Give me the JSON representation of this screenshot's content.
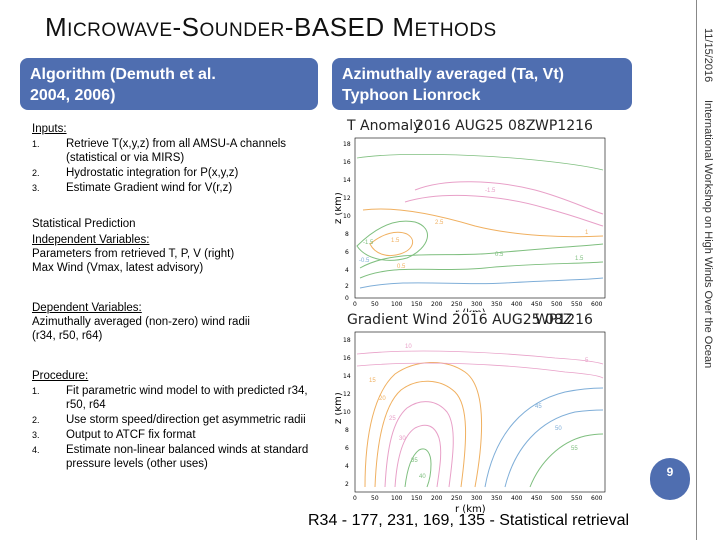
{
  "slide": {
    "title_first": "M",
    "title_rest_1": "ICROWAVE",
    "title_dash_1": "-S",
    "title_rest_2": "OUNDER",
    "title_dash_2": "-BASED M",
    "title_rest_3": "ETHODS",
    "side_date": "11/15/2016",
    "side_workshop": "International Workshop on High Winds Over the Ocean",
    "page_number": "9"
  },
  "left_box": {
    "line1": "Algorithm  (Demuth et al.",
    "line2": "2004, 2006)"
  },
  "right_box": {
    "line1": "Azimuthally averaged (Ta, Vt)",
    "line2": "Typhoon Lionrock"
  },
  "inputs": {
    "heading": "Inputs:",
    "items": [
      {
        "num": "1.",
        "text": "Retrieve T(x,y,z) from all AMSU-A channels (statistical or via MIRS)"
      },
      {
        "num": "2.",
        "text": "Hydrostatic integration for P(x,y,z)"
      },
      {
        "num": "3.",
        "text": "Estimate Gradient wind for V(r,z)"
      }
    ]
  },
  "statistical": {
    "heading": "Statistical Prediction",
    "sub_heading": "Independent Variables:",
    "line1": "Parameters from retrieved T, P, V (right)",
    "line2": "Max Wind (Vmax, latest advisory)"
  },
  "dependent": {
    "heading": "Dependent Variables:",
    "line1": "Azimuthally averaged (non-zero) wind radii",
    "line2": "(r34, r50, r64)"
  },
  "procedure": {
    "heading": "Procedure:",
    "items": [
      {
        "num": "1.",
        "text": "Fit parametric wind model to with predicted r34, r50, r64"
      },
      {
        "num": "2.",
        "text": "Use storm speed/direction get asymmetric radii"
      },
      {
        "num": "3.",
        "text": "Output to ATCF fix format"
      },
      {
        "num": "4.",
        "text": "Estimate non-linear balanced winds at standard pressure levels (other uses)"
      }
    ]
  },
  "plot_top": {
    "title_a": "T Anomaly",
    "title_b": "2016  AUG25  08Z",
    "title_c": "WP1216",
    "ylabel": "z (km)",
    "xlabel": "r (km)",
    "yticks": [
      "18",
      "16",
      "14",
      "12",
      "10",
      "8",
      "6",
      "4",
      "2",
      "0"
    ],
    "xticks": [
      "0",
      "50",
      "100",
      "150",
      "200",
      "250",
      "300",
      "350",
      "400",
      "450",
      "500",
      "550",
      "600"
    ],
    "contour_labels": [
      "-1.5",
      "-0.5",
      "0.5",
      "1.5",
      "2.5",
      "0.5",
      "1.5",
      "-1.5",
      "1"
    ]
  },
  "plot_bottom": {
    "title_a": "Gradient  Wind  2016  AUG25  08Z",
    "title_c": "WP1216",
    "ylabel": "z (km)",
    "xlabel": "r (km)",
    "yticks": [
      "18",
      "16",
      "14",
      "12",
      "10",
      "8",
      "6",
      "4",
      "2"
    ],
    "xticks": [
      "0",
      "50",
      "100",
      "150",
      "200",
      "250",
      "300",
      "350",
      "400",
      "450",
      "500",
      "550",
      "600"
    ],
    "contour_labels": [
      "5",
      "10",
      "15",
      "20",
      "25",
      "30",
      "35",
      "40",
      "45",
      "50",
      "55"
    ]
  },
  "caption": "R34 - 177, 231, 169, 135 - Statistical retrieval",
  "colors": {
    "accent_box": "#4f6eb0",
    "contour_green": "#7fbf7f",
    "contour_pink": "#e8a0c8",
    "contour_orange": "#f0b060",
    "contour_blue": "#7faed8"
  }
}
